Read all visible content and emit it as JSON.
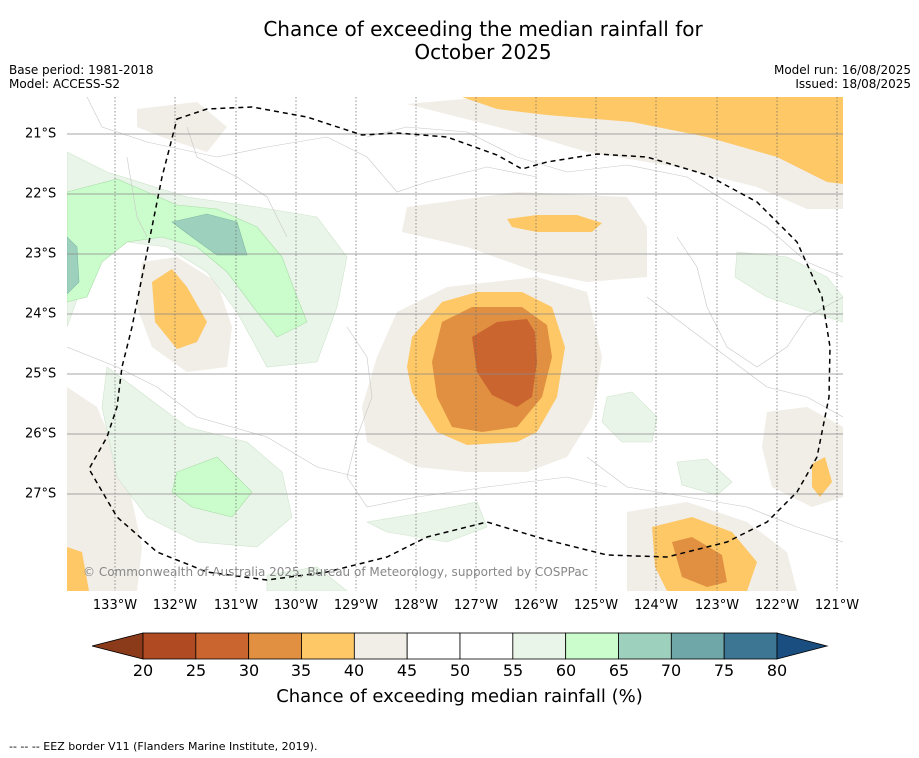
{
  "title": "Chance of exceeding the median rainfall for\nOctober 2025",
  "title_line1": "Chance of exceeding the median rainfall for",
  "title_line2": "October 2025",
  "base_period": "Base period: 1981-2018",
  "model": "Model: ACCESS-S2",
  "model_run": "Model run: 16/08/2025",
  "issued": "Issued: 18/08/2025",
  "copyright": "© Commonwealth of Australia 2025, Bureau of Meteorology, supported by COSPPac",
  "footer": "--  --  -- EEZ border V11 (Flanders Marine Institute, 2019).",
  "longitude_labels": [
    "133°W",
    "132°W",
    "131°W",
    "130°W",
    "129°W",
    "128°W",
    "127°W",
    "126°W",
    "125°W",
    "124°W",
    "123°W",
    "122°W",
    "121°W"
  ],
  "latitude_labels": [
    "21°S",
    "22°S",
    "23°S",
    "24°S",
    "25°S",
    "26°S",
    "27°S"
  ],
  "colorbar": {
    "label": "Chance of exceeding median rainfall (%)",
    "ticks": [
      "20",
      "25",
      "30",
      "35",
      "40",
      "45",
      "50",
      "55",
      "60",
      "65",
      "70",
      "75",
      "80"
    ],
    "colors": [
      "#8b3a1a",
      "#b04a22",
      "#cb6530",
      "#e09040",
      "#fec867",
      "#f1ede7",
      "#ffffff",
      "#ffffff",
      "#eaf5e9",
      "#cbfccb",
      "#9dd1bd",
      "#6fa6a8",
      "#3d7692",
      "#1a4e80"
    ]
  }
}
